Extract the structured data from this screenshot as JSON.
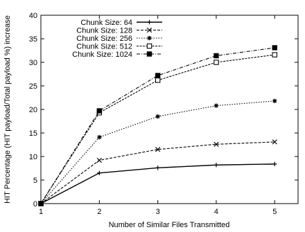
{
  "chart_data": {
    "type": "line",
    "title": "",
    "xlabel": "Number of Similar Files Transmitted",
    "ylabel": "HIT Percentage (HIT payload/Total payload %) increase",
    "x": [
      1,
      2,
      3,
      4,
      5
    ],
    "xlim": [
      1,
      5.4
    ],
    "ylim": [
      0,
      40
    ],
    "xticks": [
      "1",
      "2",
      "3",
      "4",
      "5"
    ],
    "yticks": [
      "0",
      "5",
      "10",
      "15",
      "20",
      "25",
      "30",
      "35",
      "40"
    ],
    "grid": false,
    "legend_position": "top-left",
    "series": [
      {
        "name": "Chunk Size: 64",
        "values": [
          0,
          6.5,
          7.6,
          8.2,
          8.4
        ],
        "marker": "plus",
        "dash": ""
      },
      {
        "name": "Chunk Size: 128",
        "values": [
          0,
          9.2,
          11.5,
          12.6,
          13.1
        ],
        "marker": "x",
        "dash": "4,2"
      },
      {
        "name": "Chunk Size: 256",
        "values": [
          0,
          14.1,
          18.5,
          20.8,
          21.8
        ],
        "marker": "star",
        "dash": "1.5,2"
      },
      {
        "name": "Chunk Size: 512",
        "values": [
          0,
          19.3,
          26.2,
          30.0,
          31.6
        ],
        "marker": "square-open",
        "dash": "3,1.5"
      },
      {
        "name": "Chunk Size: 1024",
        "values": [
          0,
          19.7,
          27.2,
          31.4,
          33.1
        ],
        "marker": "square-filled",
        "dash": "5,2,1,2"
      }
    ]
  }
}
